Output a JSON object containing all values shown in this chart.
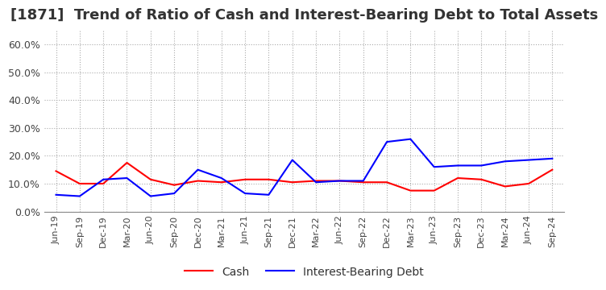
{
  "title": "[1871]  Trend of Ratio of Cash and Interest-Bearing Debt to Total Assets",
  "x_labels": [
    "Jun-19",
    "Sep-19",
    "Dec-19",
    "Mar-20",
    "Jun-20",
    "Sep-20",
    "Dec-20",
    "Mar-21",
    "Jun-21",
    "Sep-21",
    "Dec-21",
    "Mar-22",
    "Jun-22",
    "Sep-22",
    "Dec-22",
    "Mar-23",
    "Jun-23",
    "Sep-23",
    "Dec-23",
    "Mar-24",
    "Jun-24",
    "Sep-24"
  ],
  "cash": [
    14.5,
    10.0,
    10.0,
    17.5,
    11.5,
    9.5,
    11.0,
    10.5,
    11.5,
    11.5,
    10.5,
    11.0,
    11.0,
    10.5,
    10.5,
    7.5,
    7.5,
    12.0,
    11.5,
    9.0,
    10.0,
    15.0
  ],
  "interest_bearing_debt": [
    6.0,
    5.5,
    11.5,
    12.0,
    5.5,
    6.5,
    15.0,
    12.0,
    6.5,
    6.0,
    18.5,
    10.5,
    11.0,
    11.0,
    25.0,
    26.0,
    16.0,
    16.5,
    16.5,
    18.0,
    18.5,
    19.0
  ],
  "cash_color": "#ff0000",
  "ibd_color": "#0000ff",
  "ylim": [
    0,
    65
  ],
  "yticks": [
    0,
    10,
    20,
    30,
    40,
    50,
    60
  ],
  "ytick_labels": [
    "0.0%",
    "10.0%",
    "20.0%",
    "30.0%",
    "40.0%",
    "50.0%",
    "60.0%"
  ],
  "background_color": "#ffffff",
  "grid_color": "#aaaaaa",
  "title_fontsize": 13,
  "legend_cash": "Cash",
  "legend_ibd": "Interest-Bearing Debt"
}
